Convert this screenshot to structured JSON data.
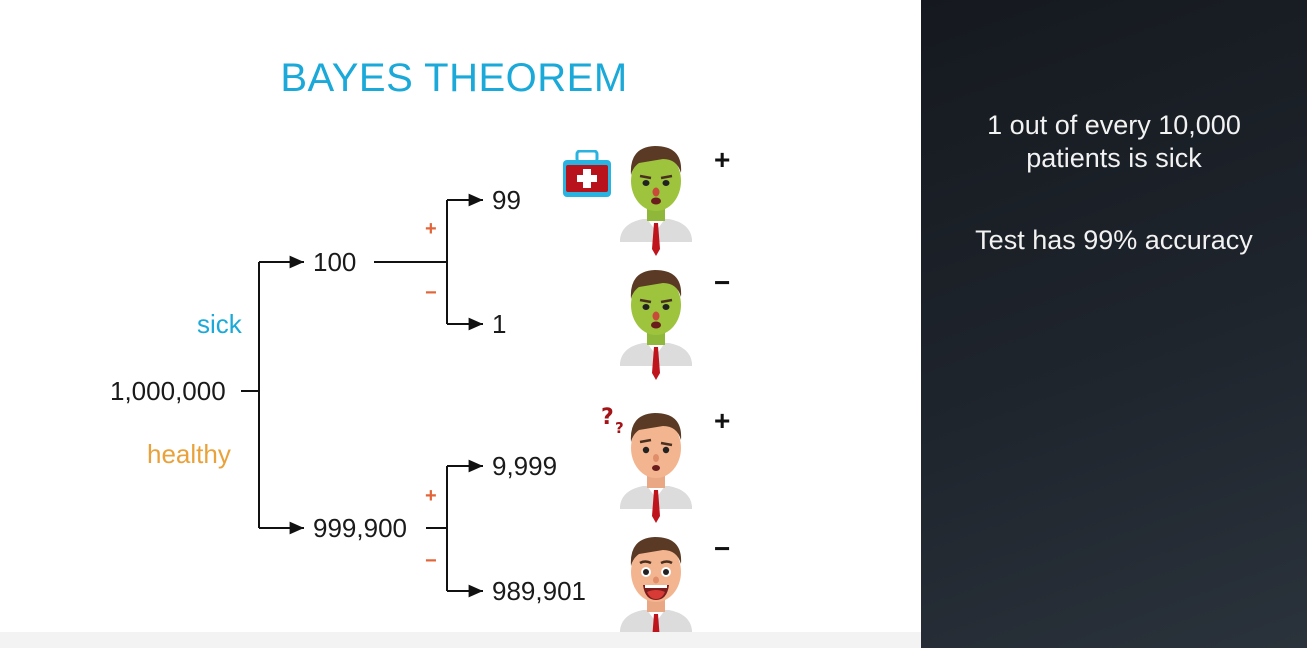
{
  "title": "BAYES THEOREM",
  "colors": {
    "title": "#1aa9d8",
    "sick": "#1aa9d8",
    "healthy": "#e9a23b",
    "branch_sign": "#e2653a",
    "panel_bg": "#1c2229",
    "panel_text": "#f2f2f2"
  },
  "tree": {
    "root": "1,000,000",
    "sick_label": "sick",
    "healthy_label": "healthy",
    "sick_count": "100",
    "healthy_count": "999,900",
    "sick_positive": "99",
    "sick_negative": "1",
    "healthy_positive": "9,999",
    "healthy_negative": "989,901",
    "plus": "+",
    "minus": "−"
  },
  "results": [
    {
      "sign": "+",
      "face": "sick-face-icon",
      "extra": "medkit-icon"
    },
    {
      "sign": "−",
      "face": "sick-face-icon"
    },
    {
      "sign": "+",
      "face": "confused-face-icon",
      "extra": "question-marks-icon"
    },
    {
      "sign": "−",
      "face": "happy-face-icon"
    }
  ],
  "panel": {
    "line1": "1 out of every 10,000",
    "line2": "patients is sick",
    "line3": "Test has 99% accuracy"
  }
}
